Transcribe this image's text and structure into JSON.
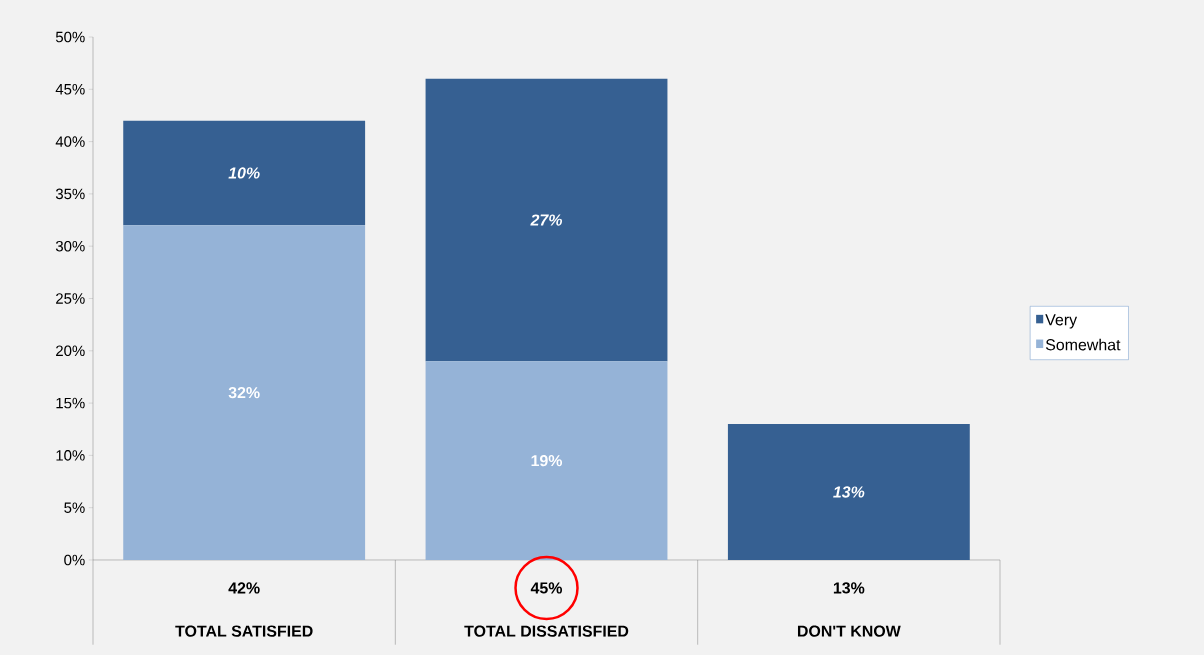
{
  "chart_data": {
    "type": "bar",
    "stacked": true,
    "categories": [
      "TOTAL SATISFIED",
      "TOTAL DISSATISFIED",
      "DON'T KNOW"
    ],
    "series": [
      {
        "name": "Somewhat",
        "color": "#95b3d7",
        "values": [
          32,
          19,
          null
        ],
        "value_labels": [
          "32%",
          "19%",
          null
        ]
      },
      {
        "name": "Very",
        "color": "#366092",
        "values": [
          10,
          27,
          13
        ],
        "value_labels": [
          "10%",
          "27%",
          "13%"
        ]
      }
    ],
    "totals": [
      "42%",
      "45%",
      "13%"
    ],
    "ylim": [
      0,
      50
    ],
    "yticks": [
      {
        "value": 0,
        "label": "0%"
      },
      {
        "value": 5,
        "label": "5%"
      },
      {
        "value": 10,
        "label": "10%"
      },
      {
        "value": 15,
        "label": "15%"
      },
      {
        "value": 20,
        "label": "20%"
      },
      {
        "value": 25,
        "label": "25%"
      },
      {
        "value": 30,
        "label": "30%"
      },
      {
        "value": 35,
        "label": "35%"
      },
      {
        "value": 40,
        "label": "40%"
      },
      {
        "value": 45,
        "label": "45%"
      },
      {
        "value": 50,
        "label": "50%"
      }
    ],
    "legend": "right",
    "grid": false
  }
}
